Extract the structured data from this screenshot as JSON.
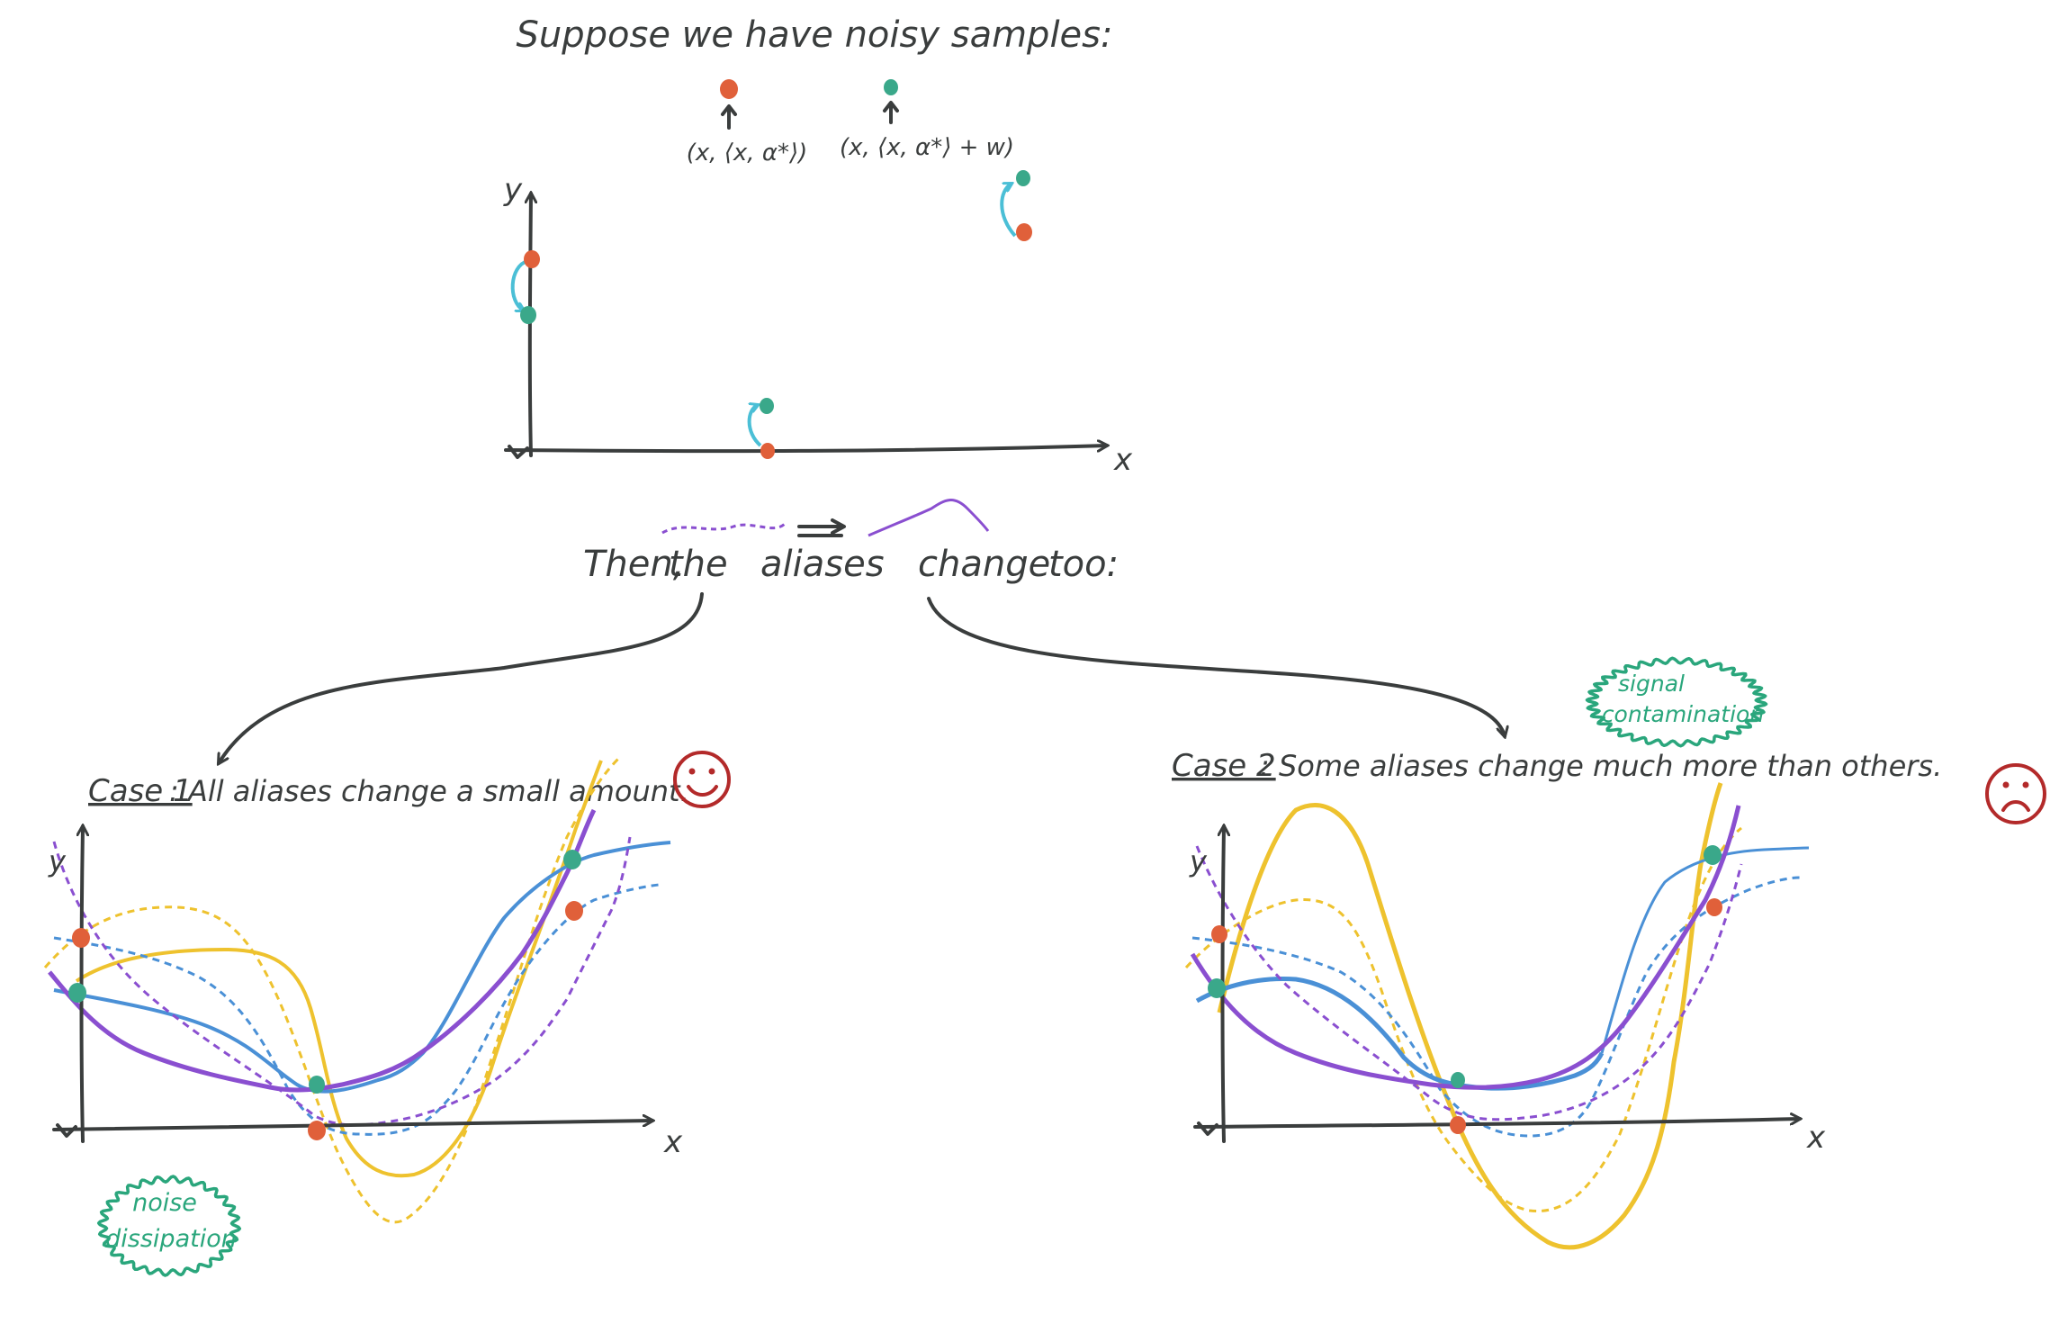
{
  "title": "Suppose we have noisy samples:",
  "legend": {
    "clean_label": "(x, ⟨x, α*⟩)",
    "noisy_label": "(x, ⟨x, α*⟩ + w)"
  },
  "top_plot": {
    "y_label": "y",
    "x_label": "x"
  },
  "then_text": {
    "word1": "Then,",
    "word2": "the",
    "word3": "aliases",
    "word4": "change",
    "word5": "too:"
  },
  "case1": {
    "label": "Case 1",
    "text": ": All aliases change a small amount.",
    "y_label": "y",
    "x_label": "x",
    "badge": {
      "line1": "noise",
      "line2": "dissipation"
    },
    "face": "happy"
  },
  "case2": {
    "label": "Case 2",
    "text": ": Some aliases change much more than others.",
    "y_label": "y",
    "x_label": "x",
    "badge": {
      "line1": "signal",
      "line2": "contamination"
    },
    "face": "sad"
  },
  "colors": {
    "ink": "#3a3d3d",
    "clean_point": "#e0603a",
    "noisy_point": "#3aa88a",
    "shift_arrow": "#4bbfd6",
    "purple": "#8a4fd0",
    "blue": "#4a90d6",
    "yellow": "#eec22e",
    "badge": "#2aa67c",
    "face": "#b32a2a"
  }
}
